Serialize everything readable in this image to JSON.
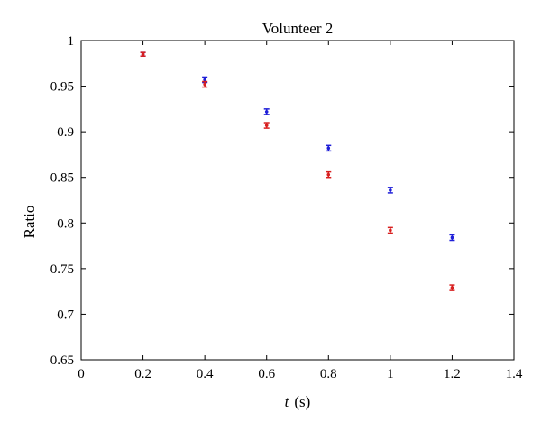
{
  "chart_data": {
    "type": "scatter",
    "title": "Volunteer 2",
    "xlabel_var": "t",
    "xlabel_unit": "(s)",
    "ylabel": "Ratio",
    "xlim": [
      0,
      1.4
    ],
    "ylim": [
      0.65,
      1
    ],
    "xticks": [
      0,
      0.2,
      0.4,
      0.6,
      0.8,
      1,
      1.2,
      1.4
    ],
    "yticks": [
      0.65,
      0.7,
      0.75,
      0.8,
      0.85,
      0.9,
      0.95,
      1
    ],
    "grid": false,
    "error_bars": true,
    "series": [
      {
        "color": "#1f1fd8",
        "x": [
          0.2,
          0.4,
          0.6,
          0.8,
          1.0,
          1.2
        ],
        "y": [
          0.985,
          0.957,
          0.922,
          0.882,
          0.836,
          0.784
        ],
        "err": [
          0.002,
          0.003,
          0.003,
          0.003,
          0.003,
          0.003
        ]
      },
      {
        "color": "#d81f1f",
        "x": [
          0.2,
          0.4,
          0.6,
          0.8,
          1.0,
          1.2
        ],
        "y": [
          0.985,
          0.952,
          0.907,
          0.853,
          0.792,
          0.729
        ],
        "err": [
          0.002,
          0.003,
          0.003,
          0.003,
          0.003,
          0.003
        ]
      }
    ]
  }
}
